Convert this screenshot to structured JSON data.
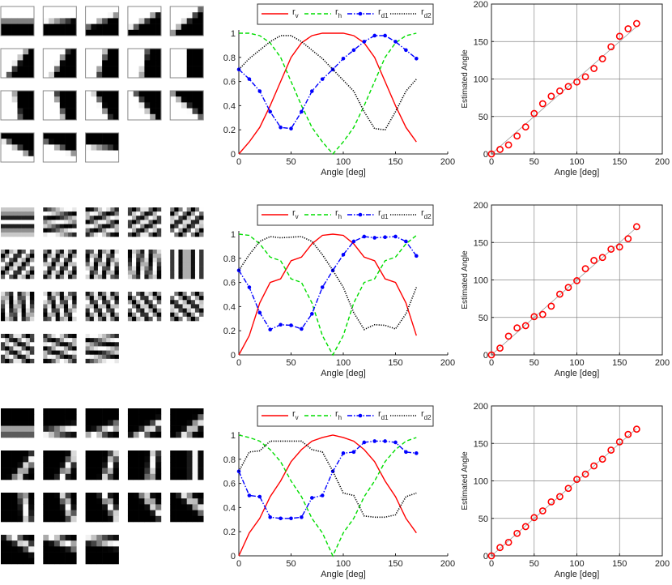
{
  "figure": {
    "rows": [
      {
        "stimulus": "edge"
      },
      {
        "stimulus": "grating"
      },
      {
        "stimulus": "line"
      }
    ],
    "tile_angles_deg": [
      0,
      10,
      20,
      30,
      40,
      50,
      60,
      70,
      80,
      90,
      100,
      110,
      120,
      130,
      140,
      150,
      160,
      170
    ]
  },
  "colors": {
    "rv": "#ff0000",
    "rh": "#00dd00",
    "rd1": "#0000ff",
    "rd2": "#000000",
    "estimate": "#ff0000",
    "grid": "#999999"
  },
  "chart_data": [
    {
      "type": "line",
      "row": 0,
      "xlabel": "Angle [deg]",
      "ylabel": "",
      "xlim": [
        0,
        200
      ],
      "ylim": [
        0,
        1
      ],
      "xticks": [
        "0",
        "50",
        "100",
        "150",
        "200"
      ],
      "yticks": [
        "0",
        "0.2",
        "0.4",
        "0.6",
        "0.8",
        "1"
      ],
      "grid": false,
      "legend": "top",
      "x": [
        0,
        10,
        20,
        30,
        40,
        50,
        60,
        70,
        80,
        90,
        100,
        110,
        120,
        130,
        140,
        150,
        160,
        170
      ],
      "series": [
        {
          "name": {
            "base": "r",
            "sub": "v"
          },
          "key": "rv",
          "style": "solid",
          "values": [
            0,
            0.1,
            0.22,
            0.4,
            0.6,
            0.8,
            0.92,
            0.98,
            1,
            1,
            1,
            0.98,
            0.92,
            0.8,
            0.6,
            0.4,
            0.22,
            0.1
          ]
        },
        {
          "name": {
            "base": "r",
            "sub": "h"
          },
          "key": "rh",
          "style": "dashed",
          "values": [
            1,
            1,
            0.98,
            0.92,
            0.8,
            0.6,
            0.4,
            0.22,
            0.1,
            0,
            0.1,
            0.22,
            0.4,
            0.6,
            0.8,
            0.92,
            0.98,
            1
          ]
        },
        {
          "name": {
            "base": "r",
            "sub": "d1"
          },
          "key": "rd1",
          "style": "dashdot-marker",
          "values": [
            0.7,
            0.62,
            0.52,
            0.35,
            0.22,
            0.21,
            0.35,
            0.52,
            0.62,
            0.7,
            0.79,
            0.86,
            0.93,
            0.98,
            0.98,
            0.93,
            0.86,
            0.79
          ]
        },
        {
          "name": {
            "base": "r",
            "sub": "d2"
          },
          "key": "rd2",
          "style": "dotted",
          "values": [
            0.7,
            0.79,
            0.86,
            0.93,
            0.98,
            0.98,
            0.93,
            0.86,
            0.79,
            0.7,
            0.61,
            0.52,
            0.35,
            0.21,
            0.2,
            0.35,
            0.52,
            0.62
          ]
        }
      ]
    },
    {
      "type": "scatter",
      "row": 0,
      "xlabel": "Angle [deg]",
      "ylabel": "Estimated Angle",
      "xlim": [
        0,
        200
      ],
      "ylim": [
        0,
        200
      ],
      "xticks": [
        "0",
        "50",
        "100",
        "150",
        "200"
      ],
      "yticks": [
        "0",
        "50",
        "100",
        "150",
        "200"
      ],
      "grid": true,
      "identity_line": true,
      "x": [
        0,
        10,
        20,
        30,
        40,
        50,
        60,
        70,
        80,
        90,
        100,
        110,
        120,
        130,
        140,
        150,
        160,
        170
      ],
      "values": [
        0,
        6,
        12,
        24,
        36,
        54,
        67,
        77,
        84,
        90,
        96,
        103,
        114,
        127,
        143,
        157,
        167,
        174
      ]
    },
    {
      "type": "line",
      "row": 1,
      "xlabel": "Angle [deg]",
      "ylabel": "",
      "xlim": [
        0,
        200
      ],
      "ylim": [
        0,
        1
      ],
      "xticks": [
        "0",
        "50",
        "100",
        "150",
        "200"
      ],
      "yticks": [
        "0",
        "0.2",
        "0.4",
        "0.6",
        "0.8",
        "1"
      ],
      "grid": false,
      "legend": "top",
      "x": [
        0,
        10,
        20,
        30,
        40,
        50,
        60,
        70,
        80,
        90,
        100,
        110,
        120,
        130,
        140,
        150,
        160,
        170
      ],
      "series": [
        {
          "name": {
            "base": "r",
            "sub": "v"
          },
          "key": "rv",
          "style": "solid",
          "values": [
            0,
            0.16,
            0.43,
            0.6,
            0.63,
            0.78,
            0.81,
            0.92,
            0.99,
            1,
            0.99,
            0.92,
            0.81,
            0.78,
            0.63,
            0.6,
            0.43,
            0.16
          ]
        },
        {
          "name": {
            "base": "r",
            "sub": "h"
          },
          "key": "rh",
          "style": "dashed",
          "values": [
            1,
            0.99,
            0.92,
            0.81,
            0.78,
            0.63,
            0.6,
            0.43,
            0.16,
            0,
            0.16,
            0.43,
            0.6,
            0.63,
            0.78,
            0.81,
            0.92,
            0.99
          ]
        },
        {
          "name": {
            "base": "r",
            "sub": "d1"
          },
          "key": "rd1",
          "style": "dashdot-marker",
          "values": [
            0.7,
            0.56,
            0.35,
            0.21,
            0.25,
            0.245,
            0.215,
            0.34,
            0.56,
            0.7,
            0.83,
            0.94,
            0.98,
            0.97,
            0.975,
            0.98,
            0.94,
            0.82
          ]
        },
        {
          "name": {
            "base": "r",
            "sub": "d2"
          },
          "key": "rd2",
          "style": "dotted",
          "values": [
            0.7,
            0.83,
            0.94,
            0.98,
            0.97,
            0.975,
            0.98,
            0.94,
            0.83,
            0.7,
            0.56,
            0.35,
            0.21,
            0.25,
            0.245,
            0.215,
            0.34,
            0.56
          ]
        }
      ]
    },
    {
      "type": "scatter",
      "row": 1,
      "xlabel": "Angle [deg]",
      "ylabel": "Estimated Angle",
      "xlim": [
        0,
        200
      ],
      "ylim": [
        0,
        200
      ],
      "xticks": [
        "0",
        "50",
        "100",
        "150",
        "200"
      ],
      "yticks": [
        "0",
        "50",
        "100",
        "150",
        "200"
      ],
      "grid": true,
      "identity_line": true,
      "x": [
        0,
        10,
        20,
        30,
        40,
        50,
        60,
        70,
        80,
        90,
        100,
        110,
        120,
        130,
        140,
        150,
        160,
        170
      ],
      "values": [
        0,
        9,
        25,
        36,
        39,
        51,
        54,
        65,
        81,
        90,
        99,
        115,
        126,
        130,
        141,
        144,
        155,
        171
      ]
    },
    {
      "type": "line",
      "row": 2,
      "xlabel": "Angle [deg]",
      "ylabel": "",
      "xlim": [
        0,
        200
      ],
      "ylim": [
        0,
        1
      ],
      "xticks": [
        "0",
        "50",
        "100",
        "150",
        "200"
      ],
      "yticks": [
        "0",
        "0.2",
        "0.4",
        "0.6",
        "0.8",
        "1"
      ],
      "grid": false,
      "legend": "top",
      "x": [
        0,
        10,
        20,
        30,
        40,
        50,
        60,
        70,
        80,
        90,
        100,
        110,
        120,
        130,
        140,
        150,
        160,
        170
      ],
      "series": [
        {
          "name": {
            "base": "r",
            "sub": "v"
          },
          "key": "rv",
          "style": "solid",
          "values": [
            0,
            0.19,
            0.31,
            0.49,
            0.62,
            0.78,
            0.88,
            0.95,
            0.98,
            1,
            0.98,
            0.95,
            0.88,
            0.78,
            0.62,
            0.49,
            0.31,
            0.19
          ]
        },
        {
          "name": {
            "base": "r",
            "sub": "h"
          },
          "key": "rh",
          "style": "dashed",
          "values": [
            1,
            0.98,
            0.95,
            0.88,
            0.78,
            0.62,
            0.49,
            0.31,
            0.19,
            0,
            0.19,
            0.31,
            0.49,
            0.62,
            0.78,
            0.88,
            0.95,
            0.98
          ]
        },
        {
          "name": {
            "base": "r",
            "sub": "d1"
          },
          "key": "rd1",
          "style": "dashdot-marker",
          "values": [
            0.7,
            0.5,
            0.49,
            0.32,
            0.31,
            0.31,
            0.32,
            0.48,
            0.5,
            0.7,
            0.85,
            0.86,
            0.94,
            0.95,
            0.95,
            0.94,
            0.86,
            0.85
          ]
        },
        {
          "name": {
            "base": "r",
            "sub": "d2"
          },
          "key": "rd2",
          "style": "dotted",
          "values": [
            0.7,
            0.86,
            0.87,
            0.95,
            0.95,
            0.95,
            0.95,
            0.88,
            0.86,
            0.7,
            0.52,
            0.5,
            0.33,
            0.32,
            0.32,
            0.34,
            0.49,
            0.52
          ]
        }
      ]
    },
    {
      "type": "scatter",
      "row": 2,
      "xlabel": "Angle [deg]",
      "ylabel": "Estimated Angle",
      "xlim": [
        0,
        200
      ],
      "ylim": [
        0,
        200
      ],
      "xticks": [
        "0",
        "50",
        "100",
        "150",
        "200"
      ],
      "yticks": [
        "0",
        "50",
        "100",
        "150",
        "200"
      ],
      "grid": true,
      "identity_line": true,
      "x": [
        0,
        10,
        20,
        30,
        40,
        50,
        60,
        70,
        80,
        90,
        100,
        110,
        120,
        130,
        140,
        150,
        160,
        170
      ],
      "values": [
        0,
        11,
        18,
        30,
        39,
        51,
        60,
        72,
        79,
        90,
        102,
        109,
        120,
        129,
        141,
        152,
        162,
        169
      ]
    }
  ]
}
